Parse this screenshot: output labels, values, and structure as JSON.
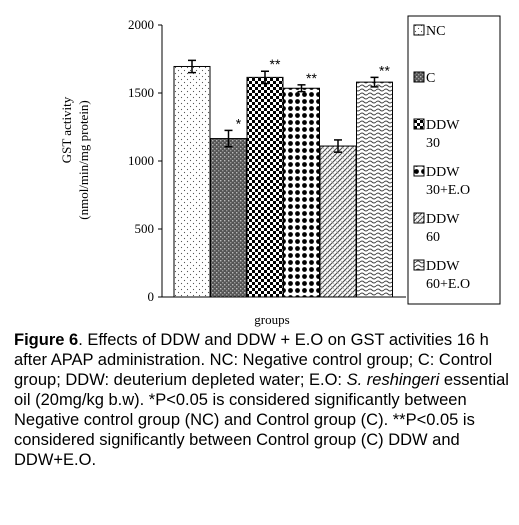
{
  "chart_data": {
    "type": "bar",
    "categories": [
      "NC",
      "C",
      "DDW 30",
      "DDW 30+E.O",
      "DDW 60",
      "DDW 60+E.O"
    ],
    "values": [
      1695,
      1165,
      1615,
      1535,
      1110,
      1580
    ],
    "errors": [
      45,
      60,
      45,
      25,
      45,
      35
    ],
    "significance": [
      "",
      "*",
      "**",
      "**",
      "",
      "**"
    ],
    "legend": [
      {
        "line1": "NC",
        "line2": ""
      },
      {
        "line1": "C",
        "line2": ""
      },
      {
        "line1": "DDW",
        "line2": "30"
      },
      {
        "line1": "DDW",
        "line2": "30+E.O"
      },
      {
        "line1": "DDW",
        "line2": "60"
      },
      {
        "line1": "DDW",
        "line2": "60+E.O"
      }
    ],
    "ylabel_line1": "GST activity",
    "ylabel_line2": "(nmol/min/mg protein)",
    "xlabel": "groups",
    "ylim": [
      0,
      2000
    ],
    "yticks": [
      "0",
      "500",
      "1000",
      "1500",
      "2000"
    ],
    "legend_position": "right",
    "grid": false
  },
  "caption": {
    "figure_label": "Figure 6",
    "text_1": ". Effects of DDW and DDW + E.O on GST activities 16 h after APAP administration. NC: Negative control group; C: Control group; DDW: deuterium depleted water; E.O: ",
    "species": "S. reshingeri",
    "text_2": " essential oil (20mg/kg b.w). *P<0.05 is considered significantly between Negative control group (NC) and Control group (C). **P<0.05 is considered significantly between Control group (C) DDW and DDW+E.O."
  }
}
